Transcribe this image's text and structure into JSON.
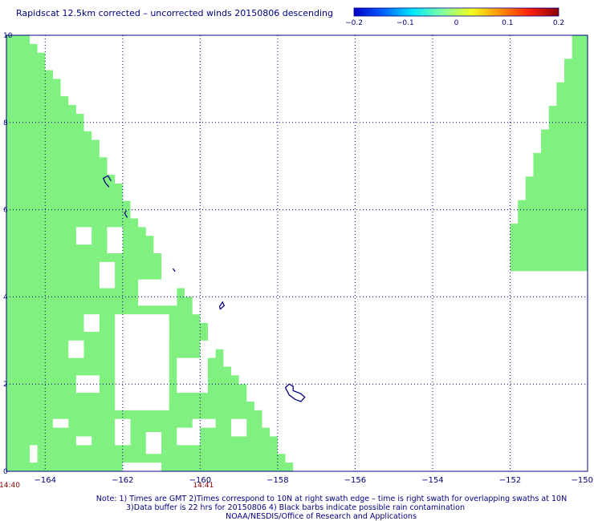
{
  "title": "Rapidscat 12.5km corrected – uncorrected winds 20150806 descending",
  "colorbar": {
    "ticks": [
      "−0.2",
      "−0.1",
      "0",
      "0.1",
      "0.2"
    ],
    "colors": [
      "#0000c8",
      "#0060ff",
      "#00e8ff",
      "#7dffa0",
      "#f0ff20",
      "#ff9000",
      "#ff2000",
      "#8b0000"
    ]
  },
  "chart_data": {
    "type": "heatmap",
    "title": "Rapidscat 12.5km corrected – uncorrected winds 20150806 descending",
    "x_tick_labels": [
      "−164",
      "−162",
      "−160",
      "−158",
      "−156",
      "−154",
      "−152",
      "−150"
    ],
    "y_tick_labels": [
      "0",
      "2",
      "4",
      "6",
      "8",
      "10"
    ],
    "xlim": [
      -165,
      -150
    ],
    "ylim": [
      0,
      10
    ],
    "grid": true,
    "time_labels": [
      {
        "text": "14:40",
        "lon": -165
      },
      {
        "text": "14:41",
        "lon": -160
      }
    ],
    "colorbar_range": [
      -0.2,
      0.2
    ],
    "wind_diff_color": "#80f080",
    "coastline_color": "#000080",
    "swath_west": {
      "row_step_deg": 0.2,
      "lon_start": -165,
      "right_edge_lon": [
        -157.6,
        -157.8,
        -158.0,
        -158.0,
        -158.2,
        -158.4,
        -158.4,
        -158.6,
        -158.8,
        -158.8,
        -159.0,
        -159.2,
        -159.4,
        -159.4,
        -159.6,
        -159.8,
        -159.8,
        -160.0,
        -160.2,
        -160.2,
        -160.4,
        -160.6,
        -160.8,
        -160.8,
        -161.0,
        -161.2,
        -161.2,
        -161.4,
        -161.6,
        -161.8,
        -161.8,
        -162.0,
        -162.0,
        -162.2,
        -162.4,
        -162.4,
        -162.6,
        -162.6,
        -162.8,
        -163.0,
        -163.0,
        -163.2,
        -163.4,
        -163.6,
        -163.6,
        -163.8,
        -164.0,
        -164.0,
        -164.2,
        -164.4
      ]
    },
    "swath_east": {
      "row_step_deg": 0.2,
      "lon_end": -150,
      "left_edge_lon": [
        -150.4,
        -150.6,
        -150.8,
        -151.0,
        -151.2,
        -151.4,
        -151.6,
        -151.8,
        -152.0,
        -152.0
      ]
    },
    "swath_west_gaps_deg": [
      [
        -162.2,
        0.6,
        -161.8,
        1.2
      ],
      [
        -161.4,
        0.4,
        -161.0,
        0.9
      ],
      [
        -160.6,
        0.6,
        -160.0,
        1.0
      ],
      [
        -162.2,
        1.4,
        -160.8,
        3.6
      ],
      [
        -161.6,
        3.8,
        -160.6,
        4.4
      ],
      [
        -160.6,
        1.8,
        -159.8,
        2.6
      ],
      [
        -160.0,
        2.6,
        -159.6,
        3.0
      ],
      [
        -163.2,
        1.8,
        -162.6,
        2.2
      ],
      [
        -163.4,
        2.6,
        -163.0,
        3.0
      ],
      [
        -163.0,
        3.2,
        -162.6,
        3.6
      ],
      [
        -162.6,
        4.2,
        -162.2,
        4.8
      ],
      [
        -162.4,
        5.0,
        -162.0,
        5.6
      ],
      [
        -163.2,
        5.2,
        -162.8,
        5.6
      ],
      [
        -161.0,
        4.4,
        -160.6,
        4.8
      ],
      [
        -160.2,
        1.0,
        -159.6,
        1.2
      ],
      [
        -159.2,
        0.8,
        -158.8,
        1.2
      ],
      [
        -163.8,
        1.0,
        -163.4,
        1.2
      ],
      [
        -164.4,
        0.2,
        -164.2,
        0.6
      ],
      [
        -162.0,
        2.4,
        -161.8,
        2.8
      ],
      [
        -161.2,
        3.0,
        -160.8,
        3.4
      ],
      [
        -163.2,
        0.6,
        -162.8,
        0.8
      ],
      [
        -162.0,
        0.0,
        -161.0,
        0.2
      ]
    ],
    "coastline_lonlat": [
      [
        [
          -162.35,
          6.52
        ],
        [
          -162.45,
          6.62
        ],
        [
          -162.5,
          6.72
        ],
        [
          -162.38,
          6.78
        ],
        [
          -162.3,
          6.66
        ]
      ],
      [
        [
          -161.9,
          5.98
        ],
        [
          -161.95,
          5.92
        ],
        [
          -161.88,
          5.82
        ]
      ],
      [
        [
          -160.7,
          4.65
        ],
        [
          -160.65,
          4.58
        ]
      ],
      [
        [
          -159.5,
          3.78
        ],
        [
          -159.42,
          3.88
        ],
        [
          -159.38,
          3.8
        ],
        [
          -159.48,
          3.72
        ],
        [
          -159.5,
          3.78
        ]
      ],
      [
        [
          -157.8,
          1.92
        ],
        [
          -157.7,
          2.0
        ],
        [
          -157.6,
          1.95
        ],
        [
          -157.6,
          1.85
        ],
        [
          -157.4,
          1.78
        ],
        [
          -157.3,
          1.7
        ],
        [
          -157.4,
          1.6
        ],
        [
          -157.55,
          1.65
        ],
        [
          -157.7,
          1.75
        ],
        [
          -157.8,
          1.92
        ]
      ]
    ]
  },
  "note_lines": [
    "Note: 1) Times are GMT 2)Times correspond to 10N at right swath edge – time is right swath for overlapping swaths at 10N",
    "3)Data buffer is 22 hrs for 20150806 4) Black barbs indicate possible rain contamination",
    "NOAA/NESDIS/Office of Research and Applications"
  ]
}
